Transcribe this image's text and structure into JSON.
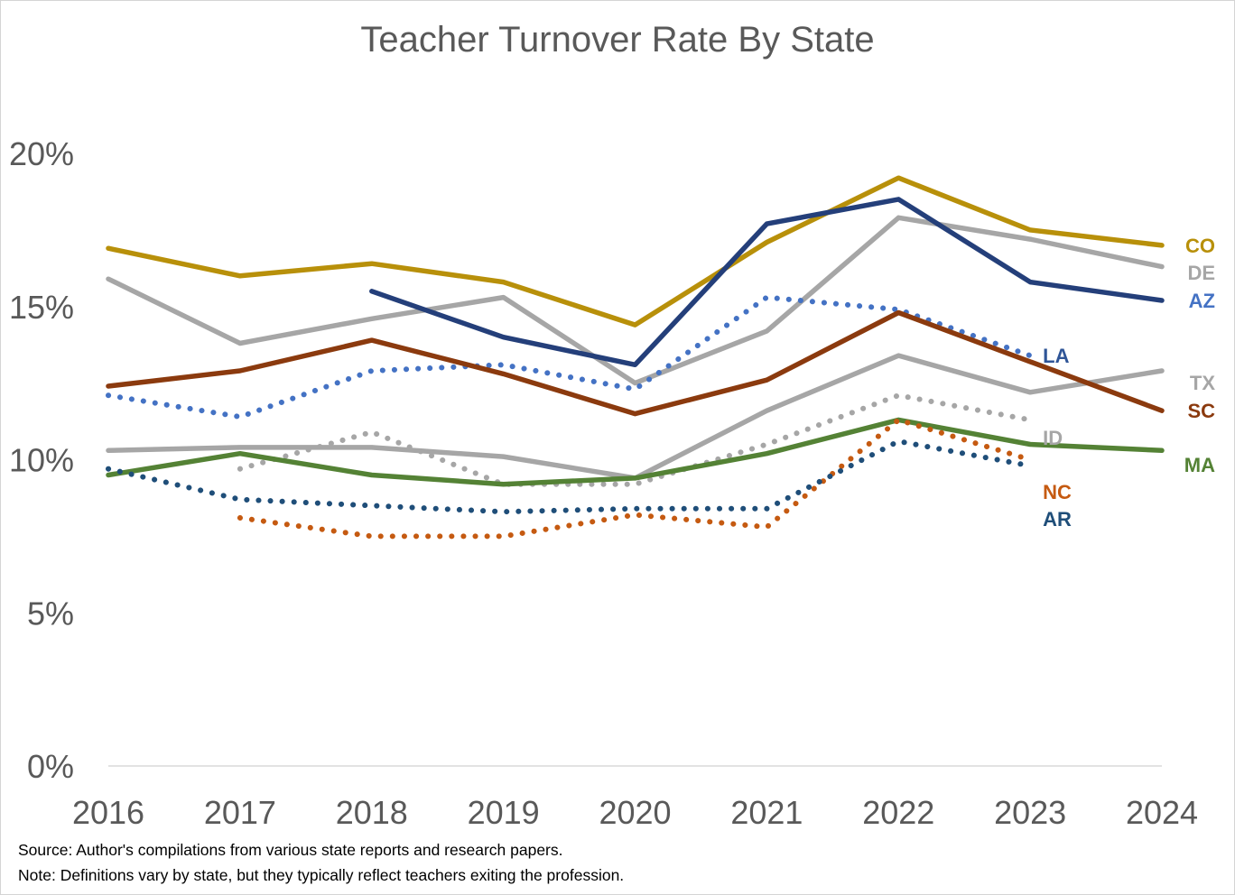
{
  "chart_data": {
    "type": "line",
    "title": "Teacher Turnover Rate By State",
    "x": [
      2016,
      2017,
      2018,
      2019,
      2020,
      2021,
      2022,
      2023,
      2024
    ],
    "x_tick_labels": [
      "2016",
      "2017",
      "2018",
      "2019",
      "2020",
      "2021",
      "2022",
      "2023",
      "2024"
    ],
    "y_ticks": [
      0,
      5,
      10,
      15,
      20
    ],
    "y_tick_labels": [
      "0%",
      "5%",
      "10%",
      "15%",
      "20%"
    ],
    "ylim": [
      0,
      20
    ],
    "grid": false,
    "series": [
      {
        "name": "CO",
        "color": "#b8900a",
        "style": "solid",
        "values": [
          16.9,
          16.0,
          16.4,
          15.8,
          14.4,
          17.1,
          19.2,
          17.5,
          17.0
        ]
      },
      {
        "name": "DE",
        "color": "#a6a6a6",
        "style": "solid",
        "values": [
          15.9,
          13.8,
          14.6,
          15.3,
          12.5,
          14.2,
          17.9,
          17.2,
          16.3
        ]
      },
      {
        "name": "AZ",
        "color": "#243f7a",
        "style": "solid",
        "label_color": "#4472c4",
        "values": [
          null,
          null,
          15.5,
          14.0,
          13.1,
          17.7,
          18.5,
          15.8,
          15.2
        ]
      },
      {
        "name": "LA",
        "color": "#4472c4",
        "style": "dotted",
        "label_color": "#2f5597",
        "values": [
          12.1,
          11.4,
          12.9,
          13.1,
          12.3,
          15.3,
          14.9,
          13.4,
          null
        ]
      },
      {
        "name": "TX",
        "color": "#a6a6a6",
        "style": "solid",
        "values": [
          10.3,
          10.4,
          10.4,
          10.1,
          9.4,
          11.6,
          13.4,
          12.2,
          12.9
        ]
      },
      {
        "name": "SC",
        "color": "#8b3a0e",
        "style": "solid",
        "values": [
          12.4,
          12.9,
          13.9,
          12.8,
          11.5,
          12.6,
          14.8,
          13.2,
          11.6
        ]
      },
      {
        "name": "ID",
        "color": "#a6a6a6",
        "style": "dotted",
        "values": [
          null,
          9.7,
          10.9,
          9.2,
          9.2,
          10.5,
          12.1,
          11.3,
          null
        ]
      },
      {
        "name": "MA",
        "color": "#548235",
        "style": "solid",
        "values": [
          9.5,
          10.2,
          9.5,
          9.2,
          9.4,
          10.2,
          11.3,
          10.5,
          10.3
        ]
      },
      {
        "name": "NC",
        "color": "#c55a11",
        "style": "dotted",
        "values": [
          null,
          8.1,
          7.5,
          7.5,
          8.2,
          7.8,
          11.3,
          10.0,
          null
        ]
      },
      {
        "name": "AR",
        "color": "#1f4e79",
        "style": "dotted",
        "values": [
          9.7,
          8.7,
          8.5,
          8.3,
          8.4,
          8.4,
          10.6,
          9.8,
          null
        ]
      }
    ]
  },
  "notes": {
    "source": "Source: Author's compilations from various state reports and research papers.",
    "definitions": "Note: Definitions vary by state, but they typically reflect teachers exiting the profession."
  }
}
